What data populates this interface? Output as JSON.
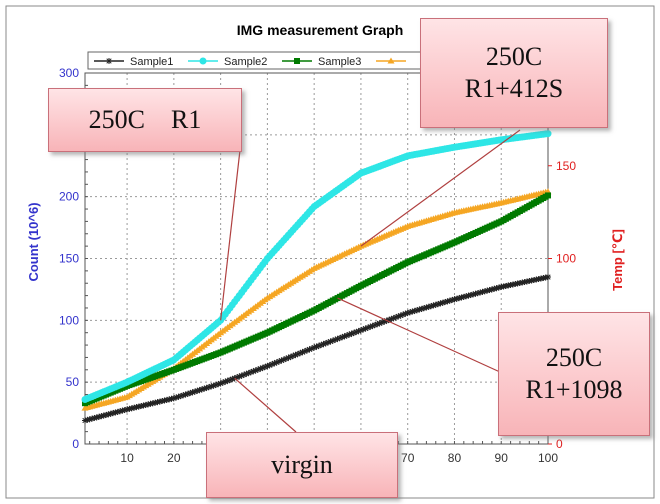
{
  "chart_data": {
    "type": "line",
    "title": "IMG measurement Graph",
    "xlabel": "",
    "ylabel": "Count (10^6)",
    "y2label": "Temp [℃]",
    "xlim": [
      1,
      100
    ],
    "ylim": [
      0,
      300
    ],
    "y2lim": [
      0,
      200
    ],
    "x_ticks": [
      10,
      20,
      70,
      80,
      90,
      100
    ],
    "y_ticks": [
      0,
      50,
      100,
      150,
      200,
      300
    ],
    "y2_ticks": [
      0,
      100,
      150
    ],
    "grid": true,
    "legend_position": "top",
    "x": [
      1,
      10,
      20,
      30,
      40,
      50,
      60,
      70,
      80,
      90,
      100
    ],
    "series": [
      {
        "name": "Sample1",
        "color": "#222222",
        "marker": "star",
        "values": [
          19,
          28,
          37,
          49,
          63,
          78,
          92,
          106,
          117,
          127,
          135
        ]
      },
      {
        "name": "Sample2",
        "color": "#2ee6e6",
        "marker": "circle",
        "values": [
          36,
          50,
          68,
          100,
          150,
          192,
          219,
          233,
          240,
          246,
          251
        ]
      },
      {
        "name": "Sample3",
        "color": "#007a00",
        "marker": "square",
        "values": [
          33,
          47,
          60,
          74,
          90,
          108,
          128,
          147,
          163,
          180,
          201
        ]
      },
      {
        "name": "",
        "color": "#f5a623",
        "marker": "triangle",
        "values": [
          29,
          38,
          61,
          90,
          118,
          142,
          160,
          176,
          187,
          195,
          204
        ]
      }
    ],
    "annotations": [
      {
        "id": "r1",
        "lines": [
          "250C　R1"
        ]
      },
      {
        "id": "r1-412s",
        "lines": [
          "250C",
          "R1+412S"
        ]
      },
      {
        "id": "r1-1098",
        "lines": [
          "250C",
          "R1+1098"
        ]
      },
      {
        "id": "virgin",
        "lines": [
          "virgin"
        ]
      }
    ],
    "colors": {
      "left_axis_text": "#3333cc",
      "right_axis_text": "#e02020",
      "callout_border": "#c9707a",
      "leader_line": "#b04040"
    }
  }
}
